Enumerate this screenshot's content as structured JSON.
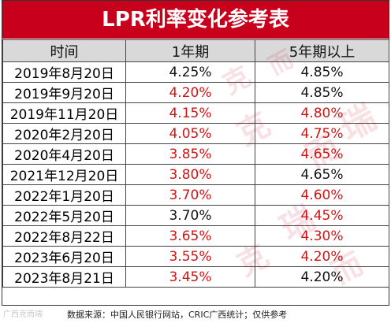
{
  "title": "LPR利率变化参考表",
  "headers": [
    "时间",
    "1年期",
    "5年期以上"
  ],
  "rows": [
    {
      "date": "2019年8月20日",
      "one_year": "4.25%",
      "five_year": "4.85%",
      "one_year_color": "up",
      "five_year_color": "up"
    },
    {
      "date": "2019年9月20日",
      "one_year": "4.20%",
      "five_year": "4.85%",
      "one_year_color": "down",
      "five_year_color": "up"
    },
    {
      "date": "2019年11月20日",
      "one_year": "4.15%",
      "five_year": "4.80%",
      "one_year_color": "down",
      "five_year_color": "down"
    },
    {
      "date": "2020年2月20日",
      "one_year": "4.05%",
      "five_year": "4.75%",
      "one_year_color": "down",
      "five_year_color": "down"
    },
    {
      "date": "2020年4月20日",
      "one_year": "3.85%",
      "five_year": "4.65%",
      "one_year_color": "down",
      "five_year_color": "down"
    },
    {
      "date": "2021年12月20日",
      "one_year": "3.80%",
      "five_year": "4.65%",
      "one_year_color": "down",
      "five_year_color": "up"
    },
    {
      "date": "2022年1月20日",
      "one_year": "3.70%",
      "five_year": "4.60%",
      "one_year_color": "down",
      "five_year_color": "down"
    },
    {
      "date": "2022年5月20日",
      "one_year": "3.70%",
      "five_year": "4.45%",
      "one_year_color": "up",
      "five_year_color": "down"
    },
    {
      "date": "2022年8月22日",
      "one_year": "3.65%",
      "five_year": "4.30%",
      "one_year_color": "down",
      "five_year_color": "down"
    },
    {
      "date": "2023年6月20日",
      "one_year": "3.55%",
      "five_year": "4.20%",
      "one_year_color": "down",
      "five_year_color": "down"
    },
    {
      "date": "2023年8月21日",
      "one_year": "3.45%",
      "five_year": "4.20%",
      "one_year_color": "down",
      "five_year_color": "up"
    }
  ],
  "footer": {
    "source": "数据来源：中国人民银行网站，CRIC广西统计；仅供参考",
    "brand": "广西克而瑞"
  },
  "watermark": [
    "克",
    "而",
    "瑞",
    "克",
    "而",
    "瑞",
    "克",
    "而"
  ],
  "colors": {
    "title_bg": "#c8001b",
    "decrease_text": "#d01414",
    "header_bg": "#d9d9d9"
  }
}
